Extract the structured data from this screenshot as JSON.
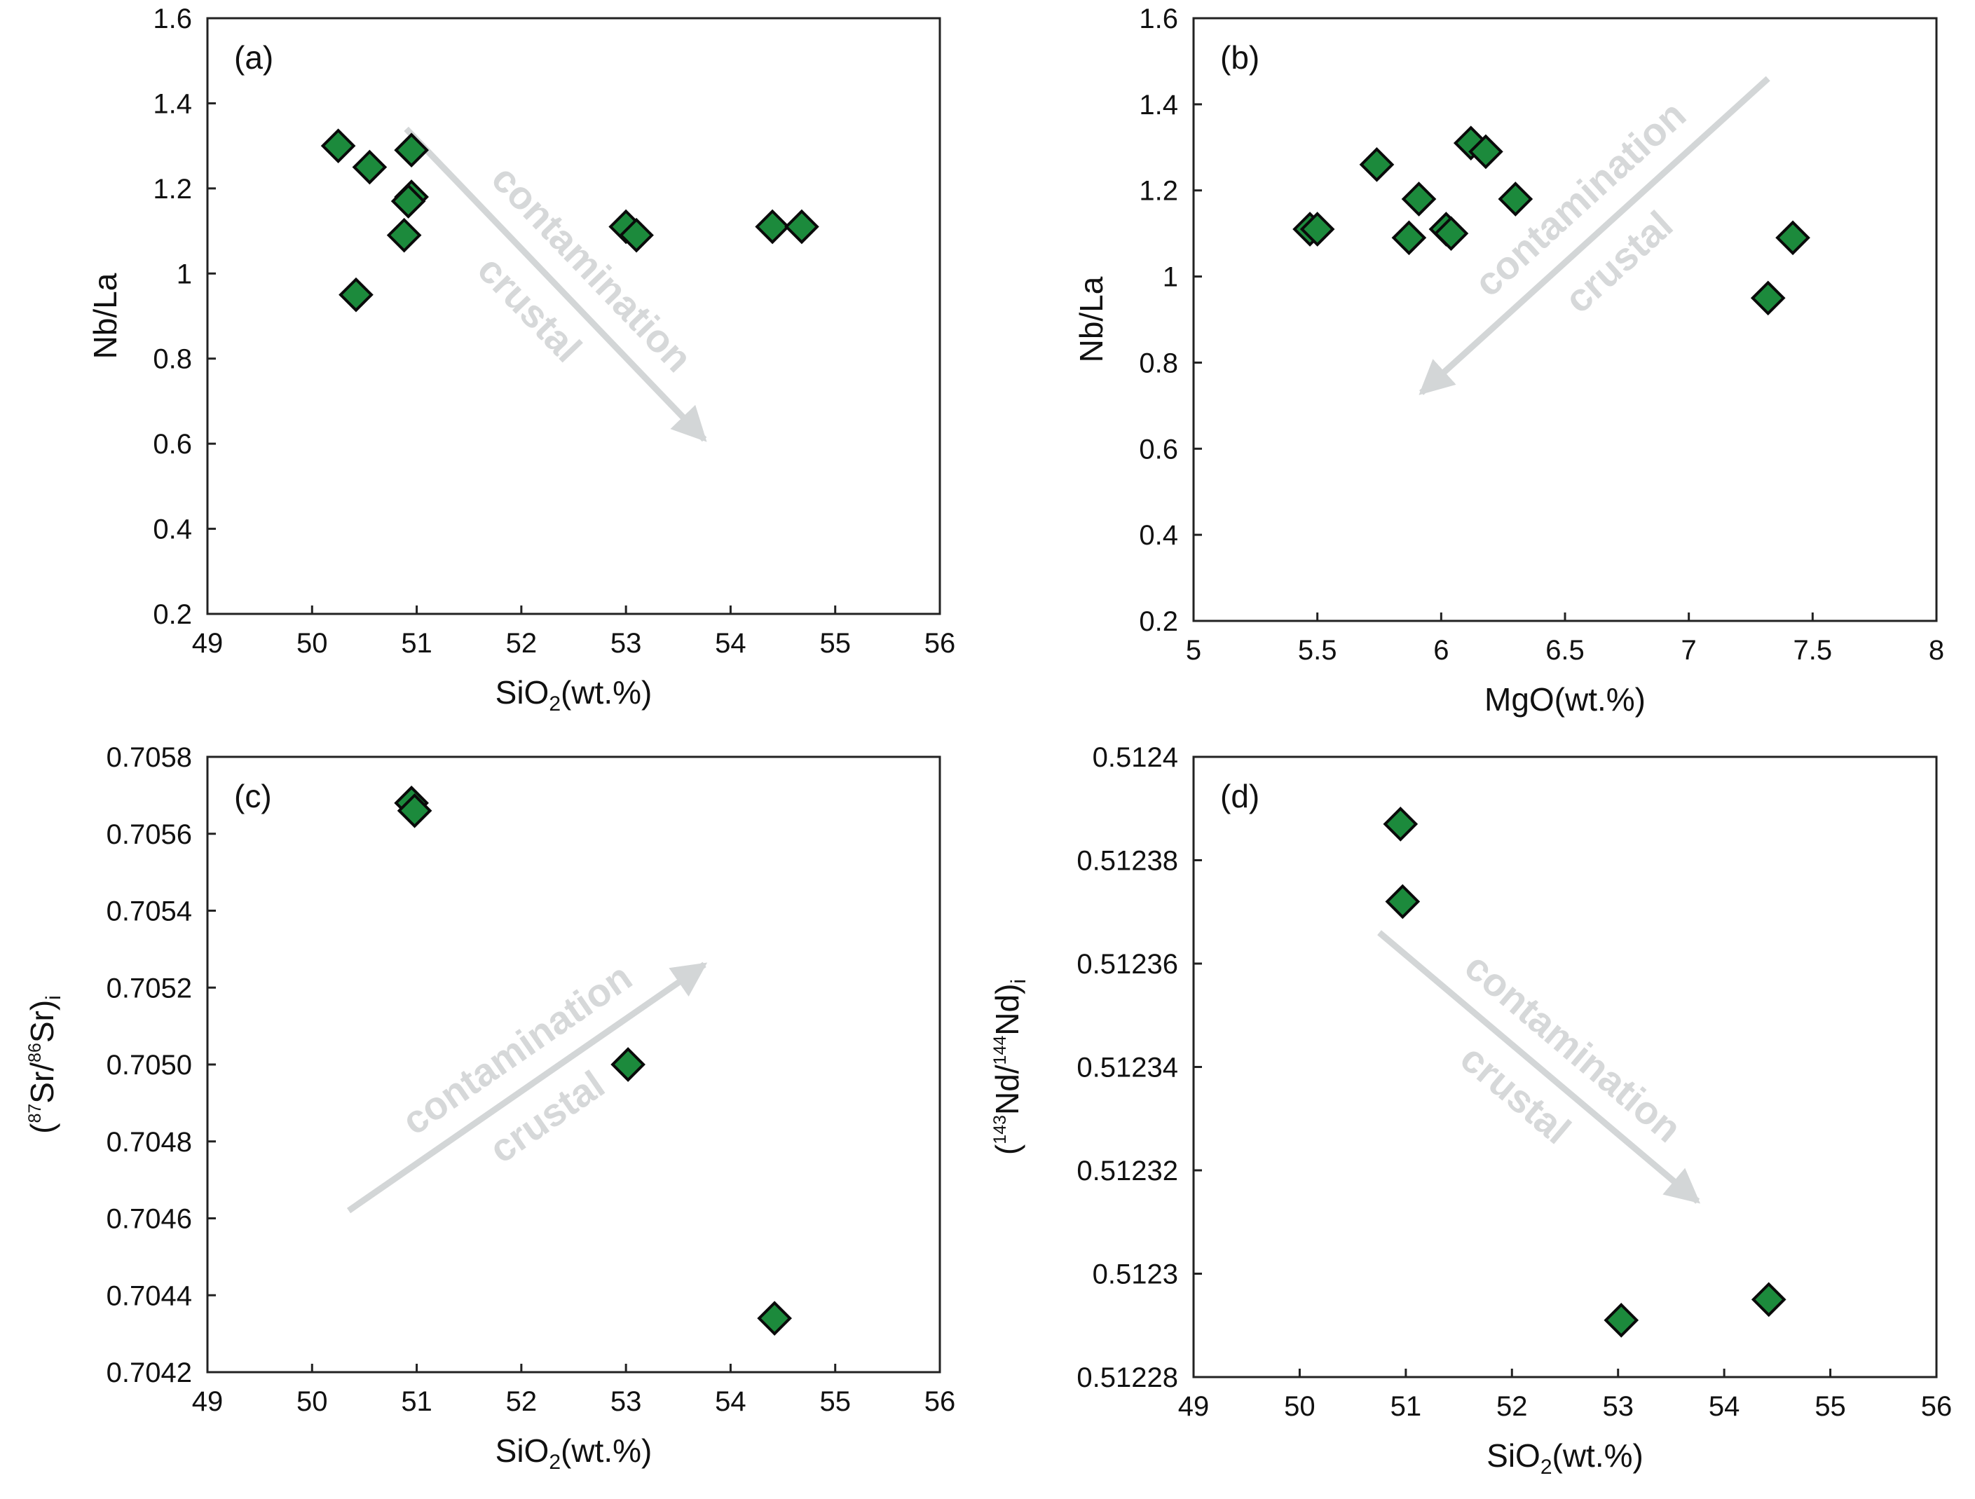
{
  "colors": {
    "marker_fill": "#1c8a3c",
    "marker_stroke": "#0a0a0a",
    "arrow": "#d3d6d7",
    "frame": "#222222"
  },
  "chart_data": [
    {
      "id": "a",
      "type": "scatter",
      "panel_label": "(a)",
      "xlabel": {
        "main": "SiO",
        "sub": "2",
        "tail": "(wt.%)"
      },
      "ylabel": {
        "text": "Nb/La"
      },
      "xlim": [
        49,
        56
      ],
      "ylim": [
        0.2,
        1.6
      ],
      "xticks": [
        49,
        50,
        51,
        52,
        53,
        54,
        55,
        56
      ],
      "xtick_labels": [
        "49",
        "50",
        "51",
        "52",
        "53",
        "54",
        "55",
        "56"
      ],
      "yticks": [
        0.2,
        0.4,
        0.6,
        0.8,
        1.0,
        1.2,
        1.4,
        1.6
      ],
      "ytick_labels": [
        "0.2",
        "0.4",
        "0.6",
        "0.8",
        "1",
        "1.2",
        "1.4",
        "1.6"
      ],
      "points": [
        {
          "x": 50.25,
          "y": 1.3
        },
        {
          "x": 50.55,
          "y": 1.25
        },
        {
          "x": 50.95,
          "y": 1.29
        },
        {
          "x": 50.95,
          "y": 1.18
        },
        {
          "x": 50.92,
          "y": 1.17
        },
        {
          "x": 50.88,
          "y": 1.09
        },
        {
          "x": 50.42,
          "y": 0.95
        },
        {
          "x": 53.0,
          "y": 1.11
        },
        {
          "x": 53.1,
          "y": 1.09
        },
        {
          "x": 54.4,
          "y": 1.11
        },
        {
          "x": 54.68,
          "y": 1.11
        }
      ],
      "annotation": {
        "lines": [
          "crustal",
          "contamination"
        ],
        "arrow_from": {
          "x": 50.9,
          "y": 1.34
        },
        "arrow_to": {
          "x": 53.75,
          "y": 0.61
        }
      }
    },
    {
      "id": "b",
      "type": "scatter",
      "panel_label": "(b)",
      "xlabel": {
        "main": "MgO(wt.%)"
      },
      "ylabel": {
        "text": "Nb/La"
      },
      "xlim": [
        5,
        8
      ],
      "ylim": [
        0.2,
        1.6
      ],
      "xticks": [
        5,
        5.5,
        6,
        6.5,
        7,
        7.5,
        8
      ],
      "xtick_labels": [
        "5",
        "5.5",
        "6",
        "6.5",
        "7",
        "7.5",
        "8"
      ],
      "yticks": [
        0.2,
        0.4,
        0.6,
        0.8,
        1.0,
        1.2,
        1.4,
        1.6
      ],
      "ytick_labels": [
        "0.2",
        "0.4",
        "0.6",
        "0.8",
        "1",
        "1.2",
        "1.4",
        "1.6"
      ],
      "points": [
        {
          "x": 5.47,
          "y": 1.11
        },
        {
          "x": 5.5,
          "y": 1.11
        },
        {
          "x": 5.74,
          "y": 1.26
        },
        {
          "x": 5.87,
          "y": 1.09
        },
        {
          "x": 5.91,
          "y": 1.18
        },
        {
          "x": 6.02,
          "y": 1.11
        },
        {
          "x": 6.04,
          "y": 1.1
        },
        {
          "x": 6.12,
          "y": 1.31
        },
        {
          "x": 6.18,
          "y": 1.29
        },
        {
          "x": 6.3,
          "y": 1.18
        },
        {
          "x": 7.32,
          "y": 0.95
        },
        {
          "x": 7.42,
          "y": 1.09
        }
      ],
      "annotation": {
        "lines": [
          "crustal",
          "contamination"
        ],
        "arrow_from": {
          "x": 7.32,
          "y": 1.46
        },
        "arrow_to": {
          "x": 5.92,
          "y": 0.73
        }
      }
    },
    {
      "id": "c",
      "type": "scatter",
      "panel_label": "(c)",
      "xlabel": {
        "main": "SiO",
        "sub": "2",
        "tail": "(wt.%)"
      },
      "ylabel": {
        "open": "(",
        "sup": "87",
        "mid": "Sr/",
        "sup2": "86",
        "main": "Sr)",
        "sub": "i"
      },
      "xlim": [
        49,
        56
      ],
      "ylim": [
        0.7042,
        0.7058
      ],
      "xticks": [
        49,
        50,
        51,
        52,
        53,
        54,
        55,
        56
      ],
      "xtick_labels": [
        "49",
        "50",
        "51",
        "52",
        "53",
        "54",
        "55",
        "56"
      ],
      "yticks": [
        0.7042,
        0.7044,
        0.7046,
        0.7048,
        0.705,
        0.7052,
        0.7054,
        0.7056,
        0.7058
      ],
      "ytick_labels": [
        "0.7042",
        "0.7044",
        "0.7046",
        "0.7048",
        "0.7050",
        "0.7052",
        "0.7054",
        "0.7056",
        "0.7058"
      ],
      "points": [
        {
          "x": 50.95,
          "y": 0.70568
        },
        {
          "x": 50.98,
          "y": 0.70566
        },
        {
          "x": 53.02,
          "y": 0.705
        },
        {
          "x": 54.42,
          "y": 0.70434
        }
      ],
      "annotation": {
        "lines": [
          "crustal",
          "contamination"
        ],
        "arrow_from": {
          "x": 50.35,
          "y": 0.70462
        },
        "arrow_to": {
          "x": 53.75,
          "y": 0.70526
        }
      }
    },
    {
      "id": "d",
      "type": "scatter",
      "panel_label": "(d)",
      "xlabel": {
        "main": "SiO",
        "sub": "2",
        "tail": "(wt.%)"
      },
      "ylabel": {
        "open": "(",
        "sup": "143",
        "mid": "Nd/",
        "sup2": "144",
        "main": "Nd)",
        "sub": "i"
      },
      "xlim": [
        49,
        56
      ],
      "ylim": [
        0.51228,
        0.5124
      ],
      "xticks": [
        49,
        50,
        51,
        52,
        53,
        54,
        55,
        56
      ],
      "xtick_labels": [
        "49",
        "50",
        "51",
        "52",
        "53",
        "54",
        "55",
        "56"
      ],
      "yticks": [
        0.51228,
        0.5123,
        0.51232,
        0.51234,
        0.51236,
        0.51238,
        0.5124
      ],
      "ytick_labels": [
        "0.51228",
        "0.5123",
        "0.51232",
        "0.51234",
        "0.51236",
        "0.51238",
        "0.5124"
      ],
      "points": [
        {
          "x": 50.95,
          "y": 0.512387
        },
        {
          "x": 50.97,
          "y": 0.512372
        },
        {
          "x": 53.03,
          "y": 0.512291
        },
        {
          "x": 54.42,
          "y": 0.512295
        }
      ],
      "annotation": {
        "lines": [
          "crustal",
          "contamination"
        ],
        "arrow_from": {
          "x": 50.75,
          "y": 0.512366
        },
        "arrow_to": {
          "x": 53.75,
          "y": 0.512314
        }
      }
    }
  ]
}
